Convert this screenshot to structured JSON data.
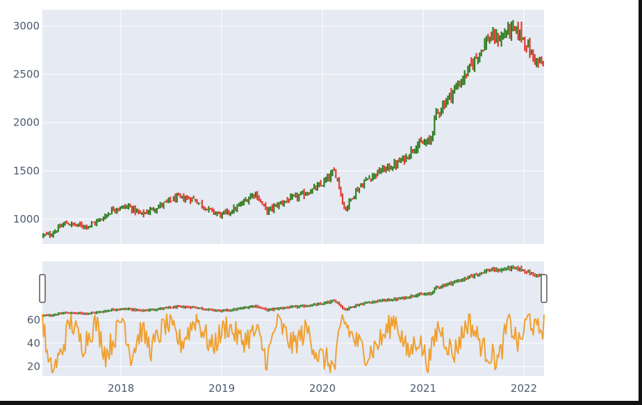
{
  "chart_data": [
    {
      "type": "candlestick",
      "title": "",
      "xlabel": "",
      "ylabel": "",
      "xlim": [
        2017.22,
        2022.2
      ],
      "ylim": [
        740,
        3170
      ],
      "x_ticks": [
        "2018",
        "2019",
        "2020",
        "2021",
        "2022"
      ],
      "y_ticks": [
        1000,
        1500,
        2000,
        2500,
        3000
      ],
      "grid": true,
      "increasing_color": "#2e7d1f",
      "decreasing_color": "#e03a2f",
      "plot_background": "#e5eaf3",
      "keypoints": [
        {
          "x": 2017.22,
          "y": 830
        },
        {
          "x": 2017.3,
          "y": 840
        },
        {
          "x": 2017.45,
          "y": 960
        },
        {
          "x": 2017.55,
          "y": 935
        },
        {
          "x": 2017.68,
          "y": 930
        },
        {
          "x": 2017.8,
          "y": 995
        },
        {
          "x": 2017.93,
          "y": 1110
        },
        {
          "x": 2018.08,
          "y": 1130
        },
        {
          "x": 2018.2,
          "y": 1045
        },
        {
          "x": 2018.35,
          "y": 1120
        },
        {
          "x": 2018.55,
          "y": 1220
        },
        {
          "x": 2018.72,
          "y": 1210
        },
        {
          "x": 2018.88,
          "y": 1090
        },
        {
          "x": 2019.0,
          "y": 1040
        },
        {
          "x": 2019.15,
          "y": 1115
        },
        {
          "x": 2019.33,
          "y": 1275
        },
        {
          "x": 2019.38,
          "y": 1190
        },
        {
          "x": 2019.45,
          "y": 1080
        },
        {
          "x": 2019.6,
          "y": 1175
        },
        {
          "x": 2019.8,
          "y": 1250
        },
        {
          "x": 2019.98,
          "y": 1345
        },
        {
          "x": 2020.12,
          "y": 1490
        },
        {
          "x": 2020.15,
          "y": 1420
        },
        {
          "x": 2020.22,
          "y": 1090
        },
        {
          "x": 2020.32,
          "y": 1275
        },
        {
          "x": 2020.45,
          "y": 1420
        },
        {
          "x": 2020.58,
          "y": 1500
        },
        {
          "x": 2020.72,
          "y": 1560
        },
        {
          "x": 2020.83,
          "y": 1640
        },
        {
          "x": 2020.92,
          "y": 1760
        },
        {
          "x": 2021.07,
          "y": 1800
        },
        {
          "x": 2021.12,
          "y": 2070
        },
        {
          "x": 2021.25,
          "y": 2260
        },
        {
          "x": 2021.42,
          "y": 2490
        },
        {
          "x": 2021.55,
          "y": 2720
        },
        {
          "x": 2021.65,
          "y": 2880
        },
        {
          "x": 2021.77,
          "y": 2870
        },
        {
          "x": 2021.85,
          "y": 2970
        },
        {
          "x": 2021.97,
          "y": 2920
        },
        {
          "x": 2022.08,
          "y": 2700
        },
        {
          "x": 2022.14,
          "y": 2620
        },
        {
          "x": 2022.2,
          "y": 2590
        }
      ]
    },
    {
      "type": "line",
      "title": "",
      "xlabel": "",
      "ylabel": "",
      "xlim": [
        2017.22,
        2022.2
      ],
      "ylim": [
        12,
        68
      ],
      "x_ticks": [
        "2018",
        "2019",
        "2020",
        "2021",
        "2022"
      ],
      "y_ticks": [
        20,
        40,
        60
      ],
      "grid": true,
      "line_color": "#f0a030",
      "range": [
        15,
        65
      ],
      "keypoints": [
        {
          "x": 2017.22,
          "y": 64
        },
        {
          "x": 2017.28,
          "y": 20
        },
        {
          "x": 2017.32,
          "y": 16
        },
        {
          "x": 2017.4,
          "y": 30
        },
        {
          "x": 2017.5,
          "y": 60
        },
        {
          "x": 2017.62,
          "y": 38
        },
        {
          "x": 2017.75,
          "y": 58
        },
        {
          "x": 2017.85,
          "y": 30
        },
        {
          "x": 2017.95,
          "y": 48
        },
        {
          "x": 2018.02,
          "y": 64
        },
        {
          "x": 2018.1,
          "y": 28
        },
        {
          "x": 2018.2,
          "y": 52
        },
        {
          "x": 2018.3,
          "y": 35
        },
        {
          "x": 2018.45,
          "y": 58
        },
        {
          "x": 2018.6,
          "y": 40
        },
        {
          "x": 2018.75,
          "y": 62
        },
        {
          "x": 2018.9,
          "y": 36
        },
        {
          "x": 2019.05,
          "y": 56
        },
        {
          "x": 2019.2,
          "y": 42
        },
        {
          "x": 2019.35,
          "y": 50
        },
        {
          "x": 2019.45,
          "y": 25
        },
        {
          "x": 2019.55,
          "y": 60
        },
        {
          "x": 2019.7,
          "y": 38
        },
        {
          "x": 2019.85,
          "y": 52
        },
        {
          "x": 2019.95,
          "y": 30
        },
        {
          "x": 2020.05,
          "y": 25
        },
        {
          "x": 2020.12,
          "y": 18
        },
        {
          "x": 2020.2,
          "y": 62
        },
        {
          "x": 2020.3,
          "y": 45
        },
        {
          "x": 2020.45,
          "y": 30
        },
        {
          "x": 2020.6,
          "y": 45
        },
        {
          "x": 2020.72,
          "y": 62
        },
        {
          "x": 2020.85,
          "y": 30
        },
        {
          "x": 2020.95,
          "y": 45
        },
        {
          "x": 2021.05,
          "y": 22
        },
        {
          "x": 2021.15,
          "y": 55
        },
        {
          "x": 2021.3,
          "y": 30
        },
        {
          "x": 2021.45,
          "y": 60
        },
        {
          "x": 2021.6,
          "y": 35
        },
        {
          "x": 2021.75,
          "y": 25
        },
        {
          "x": 2021.85,
          "y": 60
        },
        {
          "x": 2021.95,
          "y": 38
        },
        {
          "x": 2022.05,
          "y": 64
        },
        {
          "x": 2022.12,
          "y": 50
        },
        {
          "x": 2022.2,
          "y": 55
        }
      ]
    }
  ]
}
